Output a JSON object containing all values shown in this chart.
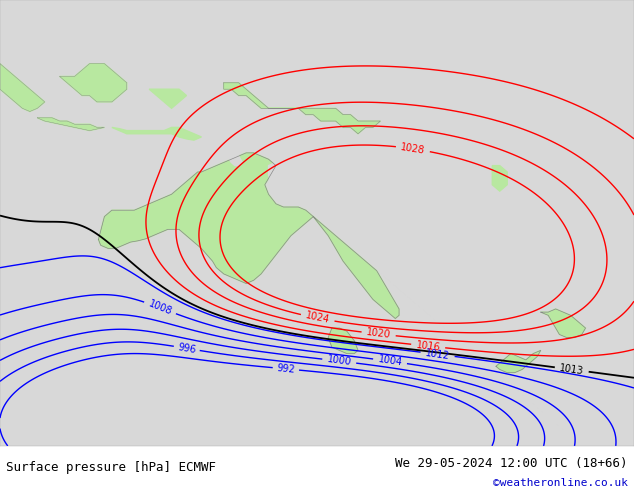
{
  "title_left": "Surface pressure [hPa] ECMWF",
  "title_right": "We 29-05-2024 12:00 UTC (18+66)",
  "copyright": "©weatheronline.co.uk",
  "bg_color": "#ffffff",
  "map_bg_color": "#d8d8d8",
  "land_color": "#b8e8a0",
  "land_color_dark": "#90c878",
  "contour_blue_color": "#0000ff",
  "contour_black_color": "#000000",
  "contour_red_color": "#ff0000",
  "label_fontsize": 7,
  "footer_fontsize": 9,
  "copyright_color": "#0000cc",
  "figsize": [
    6.34,
    4.9
  ],
  "dpi": 100,
  "extent": [
    100,
    185,
    -58,
    12
  ],
  "pressure_levels_blue": [
    992,
    996,
    1000,
    1004,
    1008,
    1012
  ],
  "pressure_levels_black": [
    1013
  ],
  "pressure_levels_red": [
    1016,
    1020,
    1024,
    1028
  ]
}
